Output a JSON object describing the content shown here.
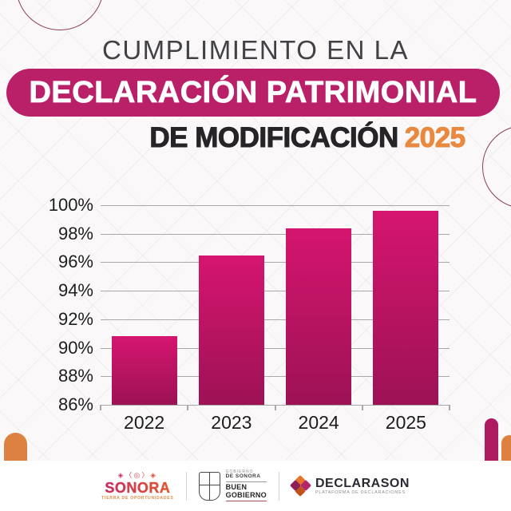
{
  "header": {
    "title": "CUMPLIMIENTO EN LA",
    "banner": "DECLARACIÓN PATRIMONIAL",
    "subtitle_prefix": "DE MODIFICACIÓN",
    "subtitle_year": "2025"
  },
  "chart_data": {
    "type": "bar",
    "categories": [
      "2022",
      "2023",
      "2024",
      "2025"
    ],
    "values": [
      90.8,
      96.5,
      98.4,
      99.6
    ],
    "title": "Cumplimiento en la Declaración Patrimonial de Modificación",
    "xlabel": "",
    "ylabel": "",
    "ylim": [
      86,
      100
    ],
    "ytick_step": 2,
    "ytick_suffix": "%",
    "grid": true,
    "legend": false,
    "bar_color_gradient": [
      "#d5156f",
      "#9d1255"
    ]
  },
  "colors": {
    "banner_bg": "#b92068",
    "bar_top": "#d5156f",
    "bar_bottom": "#9d1255",
    "accent_orange": "#e8893f",
    "grid_line": "#a9a9a9",
    "title_text": "#424146",
    "subtitle_text": "#272327",
    "circle_stroke": "#8a4154",
    "arch_orange": "#dd8140",
    "arch_magenta": "#ad1a60",
    "sonora_gradient_start": "#c62d63",
    "sonora_gradient_end": "#e2572f",
    "declarason_text": "#2b2a33"
  },
  "footer": {
    "sonora": {
      "glyphs": "◈〈◎〉◈",
      "name": "SONORA",
      "tagline": "TIERRA DE OPORTUNIDADES"
    },
    "gobierno": {
      "line1": "GOBIERNO",
      "line2": "DE SONORA",
      "line3": "BUEN",
      "line4": "GOBIERNO"
    },
    "declarason": {
      "name": "DECLARASON",
      "tagline": "PLATAFORMA DE DECLARACIONES"
    }
  }
}
